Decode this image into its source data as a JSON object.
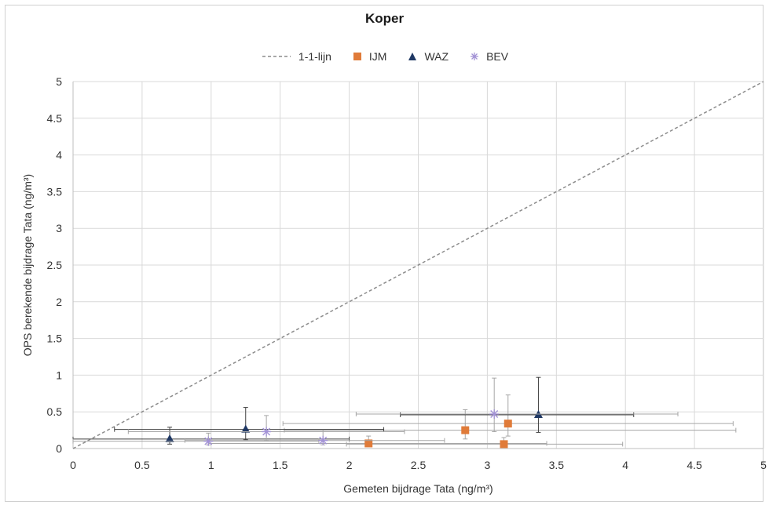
{
  "chart_data": {
    "type": "scatter",
    "title": "Koper",
    "xlabel": "Gemeten bijdrage Tata (ng/m³)",
    "ylabel": "OPS berekende bijdrage Tata (ng/m³)",
    "xlim": [
      0,
      5
    ],
    "ylim": [
      0,
      5
    ],
    "x_ticks": [
      "0",
      "0.5",
      "1",
      "1.5",
      "2",
      "2.5",
      "3",
      "3.5",
      "4",
      "4.5",
      "5"
    ],
    "y_ticks": [
      "0",
      "0.5",
      "1",
      "1.5",
      "2",
      "2.5",
      "3",
      "3.5",
      "4",
      "4.5",
      "5"
    ],
    "grid": true,
    "legend_position": "top",
    "reference_line": {
      "name": "1-1-lijn",
      "x": [
        0,
        5
      ],
      "y": [
        0,
        5
      ],
      "color": "#8c8c8c"
    },
    "series": [
      {
        "name": "IJM",
        "marker": "square",
        "color": "#e07b39",
        "errorbar_color": "#a6a6a6",
        "points": [
          {
            "x": 2.84,
            "y": 0.25,
            "xerr": [
              1.31,
              1.96
            ],
            "yerr": [
              0.12,
              0.28
            ]
          },
          {
            "x": 3.15,
            "y": 0.34,
            "xerr": [
              1.63,
              1.63
            ],
            "yerr": [
              0.17,
              0.39
            ]
          },
          {
            "x": 2.14,
            "y": 0.07,
            "xerr": [
              1.16,
              1.29
            ],
            "yerr": [
              0.04,
              0.1
            ]
          },
          {
            "x": 3.12,
            "y": 0.06,
            "xerr": [
              1.14,
              0.86
            ],
            "yerr": [
              0.03,
              0.09
            ]
          }
        ]
      },
      {
        "name": "WAZ",
        "marker": "triangle",
        "color": "#1f3864",
        "errorbar_color": "#404040",
        "points": [
          {
            "x": 3.37,
            "y": 0.46,
            "xerr": [
              1.0,
              0.69
            ],
            "yerr": [
              0.24,
              0.51
            ]
          },
          {
            "x": 1.25,
            "y": 0.26,
            "xerr": [
              0.95,
              1.0
            ],
            "yerr": [
              0.14,
              0.3
            ]
          },
          {
            "x": 0.7,
            "y": 0.13,
            "xerr": [
              0.7,
              1.3
            ],
            "yerr": [
              0.07,
              0.16
            ]
          }
        ]
      },
      {
        "name": "BEV",
        "marker": "asterisk",
        "color": "#a393d6",
        "errorbar_color": "#a6a6a6",
        "points": [
          {
            "x": 3.05,
            "y": 0.47,
            "xerr": [
              1.0,
              1.33
            ],
            "yerr": [
              0.24,
              0.49
            ]
          },
          {
            "x": 1.4,
            "y": 0.23,
            "xerr": [
              1.0,
              1.0
            ],
            "yerr": [
              0.12,
              0.22
            ]
          },
          {
            "x": 0.98,
            "y": 0.1,
            "xerr": [
              0.98,
              0.8
            ],
            "yerr": [
              0.05,
              0.11
            ]
          },
          {
            "x": 1.81,
            "y": 0.11,
            "xerr": [
              1.0,
              0.88
            ],
            "yerr": [
              0.06,
              0.14
            ]
          }
        ]
      }
    ]
  }
}
